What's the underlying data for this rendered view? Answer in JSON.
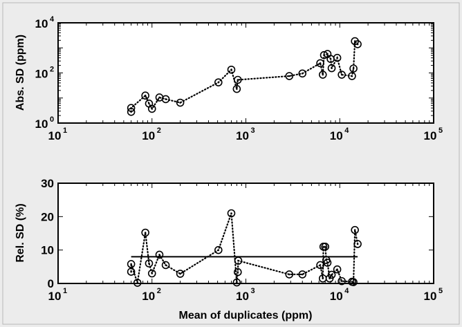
{
  "chart_data": [
    {
      "type": "scatter",
      "xscale": "log",
      "yscale": "log",
      "xlim": [
        10,
        100000
      ],
      "ylim": [
        1,
        10000
      ],
      "ylabel": "Abs. SD (ppm)",
      "xlabel": "",
      "x_ticks": [
        {
          "base": "10",
          "exp": "1",
          "value": 10
        },
        {
          "base": "10",
          "exp": "2",
          "value": 100
        },
        {
          "base": "10",
          "exp": "3",
          "value": 1000
        },
        {
          "base": "10",
          "exp": "4",
          "value": 10000
        },
        {
          "base": "10",
          "exp": "5",
          "value": 100000
        }
      ],
      "y_ticks": [
        {
          "base": "10",
          "exp": "0",
          "value": 1
        },
        {
          "base": "10",
          "exp": "2",
          "value": 100
        },
        {
          "base": "10",
          "exp": "4",
          "value": 10000
        }
      ],
      "line_style": "dotted",
      "marker": "circle-dot",
      "x": [
        60,
        60,
        85,
        93,
        100,
        120,
        140,
        200,
        510,
        700,
        800,
        820,
        2900,
        4000,
        6200,
        6600,
        6800,
        7400,
        8000,
        8200,
        9400,
        10500,
        13500,
        14000,
        14500,
        15500
      ],
      "y": [
        2.8,
        4.0,
        12.5,
        6.0,
        3.7,
        10.5,
        9.0,
        6.5,
        42,
        135,
        23,
        53,
        75,
        95,
        245,
        85,
        515,
        570,
        360,
        155,
        400,
        85,
        75,
        150,
        1850,
        1400
      ]
    },
    {
      "type": "scatter",
      "xscale": "log",
      "xlim": [
        10,
        100000
      ],
      "ylim": [
        0,
        30
      ],
      "ylabel": "Rel. SD (%)",
      "xlabel": "Mean of duplicates (ppm)",
      "x_ticks": [
        {
          "base": "10",
          "exp": "1",
          "value": 10
        },
        {
          "base": "10",
          "exp": "2",
          "value": 100
        },
        {
          "base": "10",
          "exp": "3",
          "value": 1000
        },
        {
          "base": "10",
          "exp": "4",
          "value": 10000
        },
        {
          "base": "10",
          "exp": "5",
          "value": 100000
        }
      ],
      "y_ticks": [
        "0",
        "10",
        "20",
        "30"
      ],
      "line_style": "dotted",
      "marker": "circle-dot",
      "x": [
        60,
        60,
        70,
        85,
        93,
        100,
        120,
        140,
        200,
        510,
        700,
        800,
        820,
        830,
        2900,
        4000,
        6200,
        6600,
        6700,
        7000,
        7200,
        7400,
        7800,
        8200,
        9400,
        10500,
        13500,
        14000,
        14500,
        15500
      ],
      "y": [
        3.5,
        5.8,
        0.2,
        15.2,
        6.0,
        3.0,
        8.6,
        5.5,
        2.9,
        10.0,
        21.0,
        0.3,
        3.4,
        6.8,
        2.7,
        2.7,
        5.5,
        1.5,
        11.0,
        11.0,
        7.0,
        6.2,
        1.5,
        2.6,
        4.2,
        0.7,
        0.5,
        0.4,
        16.0,
        11.8
      ],
      "reference_line": {
        "y": 8,
        "x": [
          60,
          15500
        ]
      }
    }
  ]
}
